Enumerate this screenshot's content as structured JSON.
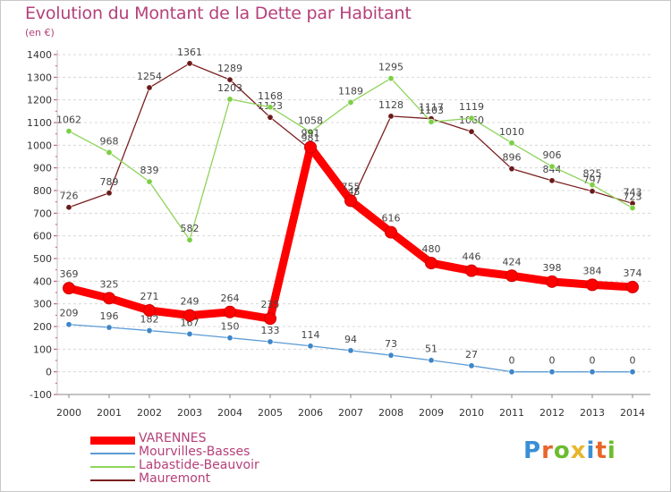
{
  "title": "Evolution du Montant de la Dette par Habitant",
  "unit": "(en €)",
  "logo": {
    "text": "Proxiti",
    "colors": [
      "#3a8fd4",
      "#e8662a",
      "#6cbc2e",
      "#e8b62a",
      "#3a8fd4",
      "#e8662a",
      "#6cbc2e"
    ]
  },
  "chart_data": {
    "type": "line",
    "title": "Evolution du Montant de la Dette par Habitant",
    "ylabel": "(en €)",
    "ylim": [
      -100,
      1400
    ],
    "yticks": [
      -100,
      0,
      100,
      200,
      300,
      400,
      500,
      600,
      700,
      800,
      900,
      1000,
      1100,
      1200,
      1300,
      1400
    ],
    "x": [
      "2000",
      "2001",
      "2002",
      "2003",
      "2004",
      "2005",
      "2006",
      "2007",
      "2008",
      "2009",
      "2010",
      "2011",
      "2012",
      "2013",
      "2014"
    ],
    "grid": "horizontal dashed",
    "legend_position": "bottom-left",
    "series": [
      {
        "name": "Mauremont",
        "color": "#7a1f1f",
        "marker": "#6b1a1a",
        "values": [
          726,
          789,
          1254,
          1361,
          1289,
          1123,
          981,
          745,
          1128,
          1117,
          1060,
          896,
          844,
          797,
          743
        ]
      },
      {
        "name": "Labastide-Beauvoir",
        "color": "#8fd45a",
        "marker": "#7ccf45",
        "values": [
          1062,
          968,
          839,
          582,
          1203,
          1168,
          1058,
          1189,
          1295,
          1103,
          1119,
          1010,
          906,
          825,
          723
        ]
      },
      {
        "name": "Mourvilles-Basses",
        "color": "#5b9bd5",
        "marker": "#3d86c9",
        "values": [
          209,
          196,
          182,
          167,
          150,
          133,
          114,
          94,
          73,
          51,
          27,
          0,
          0,
          0,
          0
        ]
      },
      {
        "name": "VARENNES",
        "color": "#ff0000",
        "marker": "#ff0000",
        "values": [
          369,
          325,
          271,
          249,
          264,
          235,
          991,
          755,
          616,
          480,
          446,
          424,
          398,
          384,
          374
        ]
      }
    ]
  }
}
